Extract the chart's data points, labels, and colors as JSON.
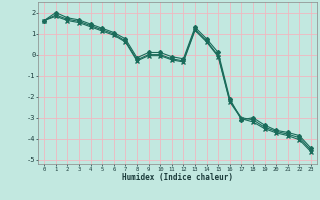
{
  "xlabel": "Humidex (Indice chaleur)",
  "bg_color": "#c2e8e0",
  "grid_color": "#f0b8c0",
  "line_color": "#1a6b5a",
  "xlim": [
    -0.5,
    23.5
  ],
  "ylim": [
    -5.2,
    2.5
  ],
  "yticks": [
    2,
    1,
    0,
    -1,
    -2,
    -3,
    -4,
    -5
  ],
  "xticks": [
    0,
    1,
    2,
    3,
    4,
    5,
    6,
    7,
    8,
    9,
    10,
    11,
    12,
    13,
    14,
    15,
    16,
    17,
    18,
    19,
    20,
    21,
    22,
    23
  ],
  "line1_x": [
    0,
    1,
    2,
    3,
    4,
    5,
    6,
    7,
    8,
    9,
    10,
    11,
    12,
    13,
    14,
    15,
    16,
    17,
    18,
    19,
    20,
    21,
    22,
    23
  ],
  "line1_y": [
    1.62,
    2.0,
    1.75,
    1.65,
    1.45,
    1.25,
    1.05,
    0.75,
    -0.15,
    0.1,
    0.1,
    -0.1,
    -0.2,
    1.3,
    0.75,
    0.1,
    -2.1,
    -3.1,
    -3.0,
    -3.35,
    -3.6,
    -3.7,
    -3.85,
    -4.45
  ],
  "line2_x": [
    0,
    1,
    2,
    3,
    4,
    5,
    6,
    7,
    8,
    9,
    10,
    11,
    12,
    13,
    14,
    15,
    16,
    17,
    18,
    19,
    20,
    21,
    22,
    23
  ],
  "line2_y": [
    1.62,
    1.88,
    1.68,
    1.58,
    1.38,
    1.18,
    0.98,
    0.65,
    -0.25,
    -0.0,
    0.0,
    -0.2,
    -0.3,
    1.2,
    0.65,
    -0.05,
    -2.2,
    -3.0,
    -3.1,
    -3.45,
    -3.65,
    -3.78,
    -3.95,
    -4.55
  ],
  "line3_x": [
    0,
    1,
    2,
    3,
    4,
    5,
    6,
    7,
    8,
    9,
    10,
    11,
    12,
    13,
    14,
    15,
    16,
    17,
    18,
    19,
    20,
    21,
    22,
    23
  ],
  "line3_y": [
    1.62,
    1.82,
    1.62,
    1.52,
    1.32,
    1.12,
    0.92,
    0.6,
    -0.3,
    -0.05,
    -0.05,
    -0.25,
    -0.35,
    1.15,
    0.6,
    -0.1,
    -2.25,
    -3.05,
    -3.2,
    -3.52,
    -3.72,
    -3.85,
    -4.05,
    -4.62
  ]
}
